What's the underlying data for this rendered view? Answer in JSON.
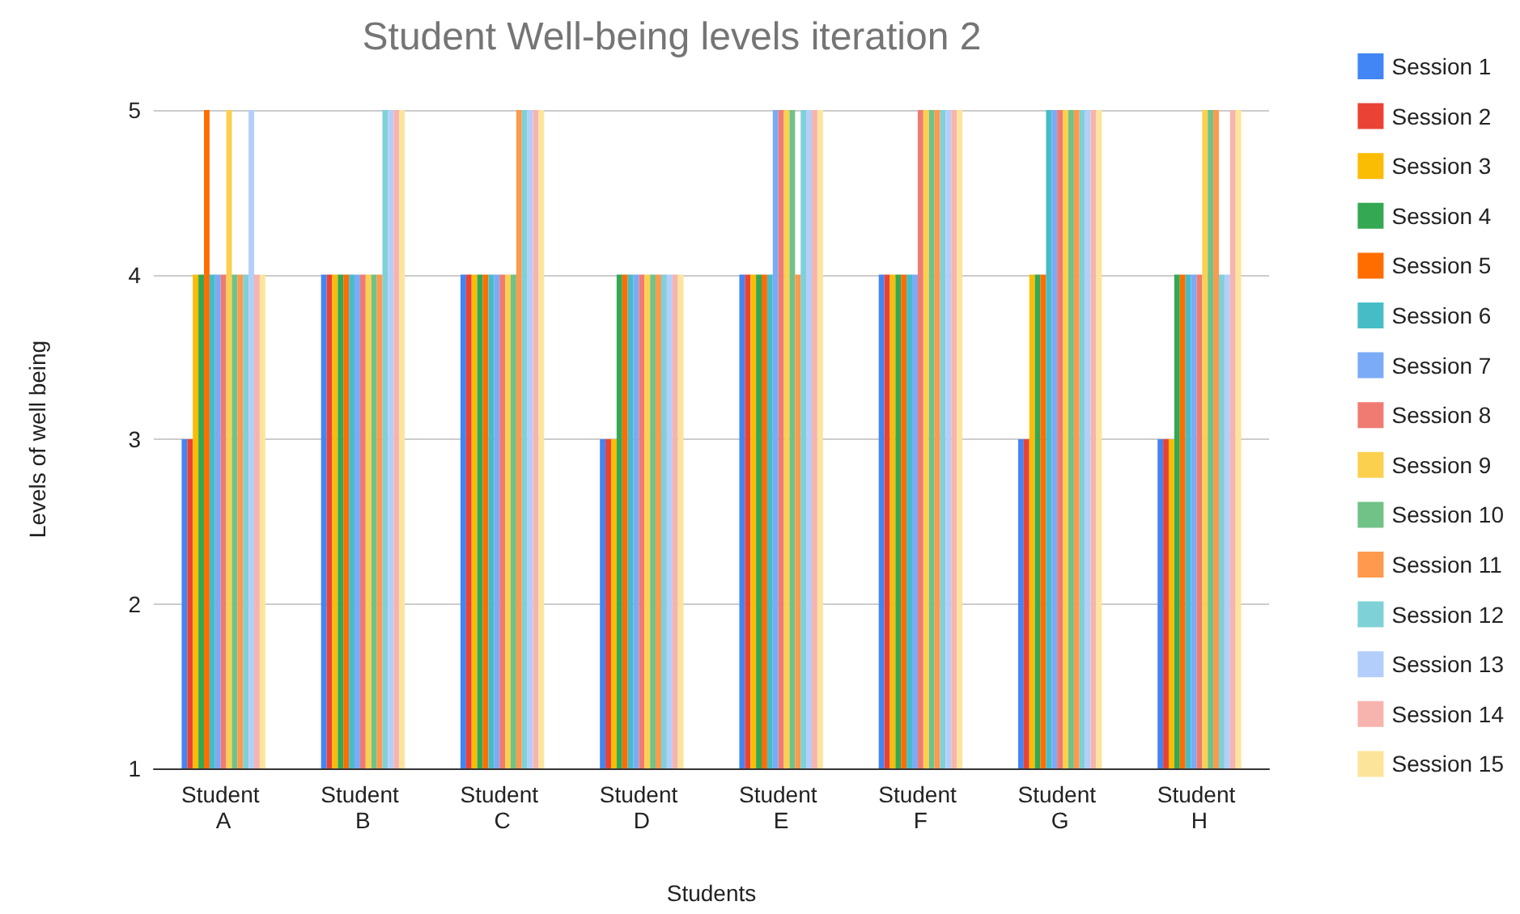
{
  "chart_data": {
    "type": "bar",
    "title": "Student Well-being levels iteration 2",
    "xlabel": "Students",
    "ylabel": "Levels of well being",
    "categories": [
      "Student A",
      "Student B",
      "Student C",
      "Student D",
      "Student E",
      "Student F",
      "Student G",
      "Student H"
    ],
    "ylim": [
      1,
      5
    ],
    "yticks": [
      1,
      2,
      3,
      4,
      5
    ],
    "grid": "y",
    "legend": "right",
    "series": [
      {
        "name": "Session 1",
        "color": "#4285f4",
        "values": [
          3,
          4,
          4,
          3,
          4,
          4,
          3,
          3
        ]
      },
      {
        "name": "Session 2",
        "color": "#ea4335",
        "values": [
          3,
          4,
          4,
          3,
          4,
          4,
          3,
          3
        ]
      },
      {
        "name": "Session 3",
        "color": "#fbbc04",
        "values": [
          4,
          4,
          4,
          3,
          4,
          4,
          4,
          3
        ]
      },
      {
        "name": "Session 4",
        "color": "#34a853",
        "values": [
          4,
          4,
          4,
          4,
          4,
          4,
          4,
          4
        ]
      },
      {
        "name": "Session 5",
        "color": "#ff6d01",
        "values": [
          5,
          4,
          4,
          4,
          4,
          4,
          4,
          4
        ]
      },
      {
        "name": "Session 6",
        "color": "#46bdc6",
        "values": [
          4,
          4,
          4,
          4,
          4,
          4,
          5,
          4
        ]
      },
      {
        "name": "Session 7",
        "color": "#7baaf7",
        "values": [
          4,
          4,
          4,
          4,
          5,
          4,
          5,
          4
        ]
      },
      {
        "name": "Session 8",
        "color": "#f07b72",
        "values": [
          4,
          4,
          4,
          4,
          5,
          5,
          5,
          4
        ]
      },
      {
        "name": "Session 9",
        "color": "#fcd04f",
        "values": [
          5,
          4,
          4,
          4,
          5,
          5,
          5,
          5
        ]
      },
      {
        "name": "Session 10",
        "color": "#71c287",
        "values": [
          4,
          4,
          4,
          4,
          5,
          5,
          5,
          5
        ]
      },
      {
        "name": "Session 11",
        "color": "#ff994d",
        "values": [
          4,
          4,
          5,
          4,
          4,
          5,
          5,
          5
        ]
      },
      {
        "name": "Session 12",
        "color": "#7ed1d7",
        "values": [
          4,
          5,
          5,
          4,
          5,
          5,
          5,
          4
        ]
      },
      {
        "name": "Session 13",
        "color": "#b3cefb",
        "values": [
          5,
          5,
          5,
          4,
          5,
          5,
          5,
          4
        ]
      },
      {
        "name": "Session 14",
        "color": "#f7b4ae",
        "values": [
          4,
          5,
          5,
          4,
          5,
          5,
          5,
          5
        ]
      },
      {
        "name": "Session 15",
        "color": "#fde49b",
        "values": [
          4,
          5,
          5,
          4,
          5,
          5,
          5,
          5
        ]
      }
    ]
  }
}
